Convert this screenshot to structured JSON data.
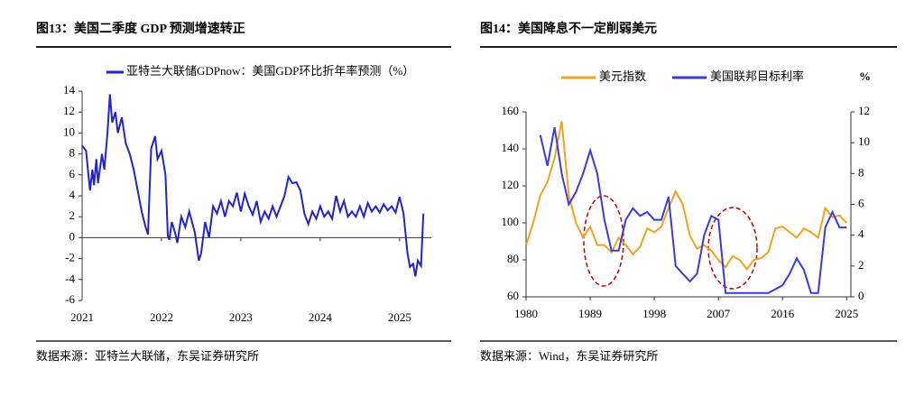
{
  "chart_data": [
    {
      "type": "line",
      "title": "图13：美国二季度 GDP 预测增速转正",
      "source": "数据来源：亚特兰大联储，东吴证券研究所",
      "x": [
        2021.0,
        2021.05,
        2021.08,
        2021.1,
        2021.13,
        2021.15,
        2021.18,
        2021.2,
        2021.25,
        2021.28,
        2021.32,
        2021.35,
        2021.38,
        2021.42,
        2021.45,
        2021.5,
        2021.55,
        2021.6,
        2021.65,
        2021.7,
        2021.75,
        2021.8,
        2021.83,
        2021.87,
        2021.92,
        2021.95,
        2022.0,
        2022.05,
        2022.08,
        2022.1,
        2022.13,
        2022.17,
        2022.2,
        2022.25,
        2022.3,
        2022.35,
        2022.42,
        2022.47,
        2022.5,
        2022.55,
        2022.6,
        2022.65,
        2022.7,
        2022.75,
        2022.8,
        2022.85,
        2022.9,
        2022.95,
        2023.0,
        2023.05,
        2023.1,
        2023.15,
        2023.2,
        2023.25,
        2023.3,
        2023.35,
        2023.4,
        2023.45,
        2023.55,
        2023.6,
        2023.65,
        2023.7,
        2023.75,
        2023.8,
        2023.85,
        2023.9,
        2023.95,
        2024.0,
        2024.05,
        2024.1,
        2024.15,
        2024.2,
        2024.25,
        2024.3,
        2024.35,
        2024.4,
        2024.45,
        2024.5,
        2024.55,
        2024.6,
        2024.65,
        2024.7,
        2024.75,
        2024.8,
        2024.85,
        2024.9,
        2024.95,
        2025.0,
        2025.05,
        2025.1,
        2025.13,
        2025.17,
        2025.2,
        2025.23,
        2025.27,
        2025.3
      ],
      "series": [
        {
          "name": "亚特兰大联储GDPnow：美国GDP环比折年率预测（%）",
          "color": "#2323cc",
          "values": [
            8.8,
            8.3,
            6,
            4.5,
            6.5,
            5,
            7.5,
            5.2,
            8,
            6.5,
            10,
            13.7,
            11,
            12,
            10,
            11.5,
            9,
            8,
            6.5,
            4.5,
            2.5,
            1,
            0.3,
            8.5,
            9.7,
            7.5,
            8.3,
            6,
            0.2,
            -0.2,
            1.5,
            0.5,
            -0.5,
            2,
            1,
            2.5,
            0.5,
            -2.2,
            -1.5,
            1.5,
            0,
            3,
            2.3,
            3.5,
            2,
            3.5,
            3,
            4.3,
            2.5,
            4.2,
            3,
            2.2,
            3.5,
            1.5,
            2.5,
            1.8,
            3,
            2,
            4,
            5.8,
            5.2,
            5.3,
            4.5,
            2.3,
            1.3,
            2.5,
            1.8,
            3,
            2,
            2.5,
            1.8,
            4,
            2.5,
            3.5,
            2,
            2.5,
            2,
            3,
            2,
            3.3,
            2.5,
            3,
            2.4,
            3.2,
            2.6,
            3,
            2.4,
            3.9,
            2.3,
            -1.5,
            -2.8,
            -2.5,
            -3.7,
            -2.2,
            -2.7,
            2.3
          ]
        }
      ],
      "xlim": [
        2021,
        2025.4
      ],
      "xticks": [
        2021,
        2022,
        2023,
        2024,
        2025
      ],
      "ylim": [
        -6,
        14
      ],
      "yticks": [
        -6,
        -4,
        -2,
        0,
        2,
        4,
        6,
        8,
        10,
        12,
        14
      ]
    },
    {
      "type": "line",
      "title": "图14：美国降息不一定削弱美元",
      "source": "数据来源：Wind，东吴证券研究所",
      "y2label": "%",
      "x": [
        1980,
        1981,
        1982,
        1983,
        1984,
        1985,
        1986,
        1987,
        1988,
        1989,
        1990,
        1991,
        1992,
        1993,
        1994,
        1995,
        1996,
        1997,
        1998,
        1999,
        2000,
        2001,
        2002,
        2003,
        2004,
        2005,
        2006,
        2007,
        2008,
        2009,
        2010,
        2011,
        2012,
        2013,
        2014,
        2015,
        2016,
        2017,
        2018,
        2019,
        2020,
        2021,
        2022,
        2023,
        2024,
        2025
      ],
      "series": [
        {
          "name": "美元指数",
          "color": "#f4a21c",
          "values": [
            88,
            100,
            115,
            122,
            135,
            155,
            115,
            100,
            92,
            98,
            88,
            88,
            84,
            92,
            88,
            83,
            87,
            97,
            95,
            98,
            108,
            117,
            110,
            93,
            86,
            88,
            85,
            80,
            76,
            82,
            80,
            75,
            80,
            81,
            84,
            97,
            98,
            95,
            92,
            97,
            95,
            92,
            108,
            103,
            104,
            100
          ]
        },
        {
          "name": "美国联邦目标利率",
          "color": "#3a3ae0",
          "axis": "y2",
          "values": [
            null,
            null,
            10.5,
            8.5,
            11,
            8,
            6,
            6.8,
            8,
            9.5,
            8,
            5,
            3,
            3,
            5,
            5.75,
            5.25,
            5.5,
            5,
            5,
            6.5,
            2,
            1.5,
            1,
            1.5,
            4,
            5.25,
            5,
            0.25,
            0.25,
            0.25,
            0.25,
            0.25,
            0.25,
            0.25,
            0.5,
            0.75,
            1.5,
            2.5,
            1.75,
            0.25,
            0.25,
            4.5,
            5.5,
            4.5,
            4.5
          ]
        }
      ],
      "xlim": [
        1980,
        2025.6
      ],
      "xticks": [
        1980,
        1989,
        1998,
        2007,
        2016,
        2025
      ],
      "ylim": [
        60,
        160
      ],
      "yticks": [
        60,
        80,
        100,
        120,
        140,
        160
      ],
      "y2lim": [
        0,
        12
      ],
      "y2ticks": [
        0,
        2,
        4,
        6,
        8,
        10,
        12
      ]
    }
  ]
}
